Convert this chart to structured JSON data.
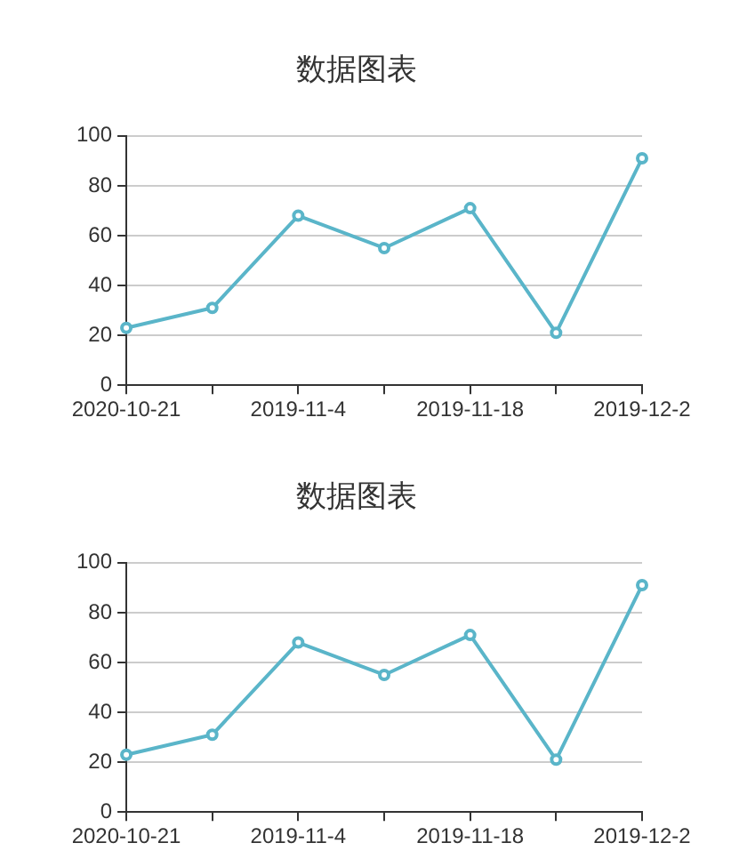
{
  "chart_data": [
    {
      "type": "line",
      "title": "数据图表",
      "categories": [
        "2020-10-21",
        null,
        "2019-11-4",
        null,
        "2019-11-18",
        null,
        "2019-12-2"
      ],
      "series": [
        {
          "color": "#5ab5c9",
          "values": [
            23,
            31,
            68,
            55,
            71,
            21,
            91
          ]
        }
      ],
      "ylim": [
        0,
        100
      ],
      "yticks": [
        0,
        20,
        40,
        60,
        80,
        100
      ],
      "grid": "y",
      "legend": false,
      "marker": "circle",
      "line_style": "solid"
    },
    {
      "type": "line",
      "title": "数据图表",
      "categories": [
        "2020-10-21",
        null,
        "2019-11-4",
        null,
        "2019-11-18",
        null,
        "2019-12-2"
      ],
      "series": [
        {
          "color": "#5ab5c9",
          "values": [
            23,
            31,
            68,
            55,
            71,
            21,
            91
          ]
        }
      ],
      "ylim": [
        0,
        100
      ],
      "yticks": [
        0,
        20,
        40,
        60,
        80,
        100
      ],
      "grid": "y",
      "legend": false,
      "marker": "circle",
      "line_style": "solid"
    }
  ]
}
